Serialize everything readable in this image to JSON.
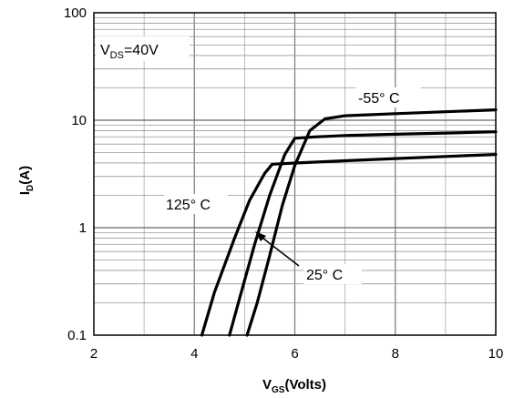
{
  "chart_data": {
    "type": "line",
    "title": "",
    "xlabel": {
      "main": "V",
      "sub": "GS",
      "rest": "(Volts)"
    },
    "ylabel": {
      "main": "I",
      "sub": "D",
      "rest": "(A)"
    },
    "xscale": "linear",
    "yscale": "log",
    "xlim": [
      2,
      10
    ],
    "ylim": [
      0.1,
      100
    ],
    "x_ticks": [
      2,
      4,
      6,
      8,
      10
    ],
    "x_tick_labels": [
      "2",
      "4",
      "6",
      "8",
      "10"
    ],
    "y_ticks": [
      0.1,
      1,
      10,
      100
    ],
    "y_tick_labels": [
      "0.1",
      "1",
      "10",
      "100"
    ],
    "grid": true,
    "condition": {
      "main": "V",
      "sub": "DS",
      "rest": "=40V"
    },
    "series": [
      {
        "name": "-55° C",
        "x": [
          5.05,
          5.25,
          5.5,
          5.75,
          6.0,
          6.3,
          6.6,
          7.0,
          8.0,
          9.0,
          10.0
        ],
        "y": [
          0.1,
          0.2,
          0.55,
          1.6,
          3.8,
          8.0,
          10.3,
          11.0,
          11.5,
          12.0,
          12.5
        ]
      },
      {
        "name": "25° C",
        "x": [
          4.7,
          4.9,
          5.2,
          5.5,
          5.8,
          6.0,
          6.4,
          7.0,
          8.0,
          9.0,
          10.0
        ],
        "y": [
          0.1,
          0.22,
          0.7,
          2.0,
          4.8,
          6.8,
          7.0,
          7.2,
          7.4,
          7.6,
          7.8
        ]
      },
      {
        "name": "125° C",
        "x": [
          4.15,
          4.4,
          4.8,
          5.1,
          5.4,
          5.55,
          6.0,
          7.0,
          8.0,
          9.0,
          10.0
        ],
        "y": [
          0.1,
          0.25,
          0.8,
          1.8,
          3.2,
          3.9,
          4.0,
          4.2,
          4.4,
          4.6,
          4.8
        ]
      }
    ],
    "annotations": [
      {
        "text": "-55° C",
        "series": "-55° C"
      },
      {
        "text": "125° C",
        "series": "125° C"
      },
      {
        "text": "25° C",
        "series": "25° C"
      }
    ]
  }
}
